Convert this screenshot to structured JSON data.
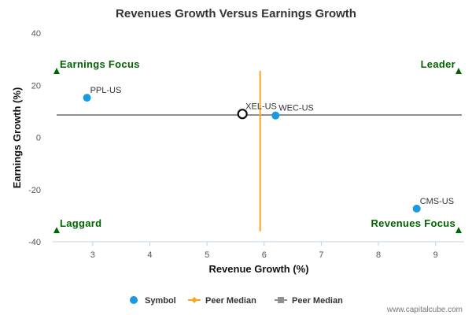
{
  "chart_data": {
    "type": "scatter",
    "title": "Revenues Growth Versus Earnings Growth",
    "xlabel": "Revenue Growth (%)",
    "ylabel": "Earnings Growth (%)",
    "xlim": [
      2.3,
      9.5
    ],
    "ylim": [
      -40,
      40
    ],
    "xticks": [
      3,
      4,
      5,
      6,
      7,
      8,
      9
    ],
    "yticks": [
      40,
      20,
      0,
      -20,
      -40
    ],
    "points": [
      {
        "symbol": "PPL-US",
        "x": 2.9,
        "y": 15.2
      },
      {
        "symbol": "XEL-US",
        "x": 5.62,
        "y": 9.0,
        "highlight": true
      },
      {
        "symbol": "WEC-US",
        "x": 6.2,
        "y": 8.4
      },
      {
        "symbol": "CMS-US",
        "x": 8.67,
        "y": -27.3
      }
    ],
    "peer_median_x": 5.93,
    "peer_median_y": 8.6,
    "quadrants": [
      {
        "label": "Earnings Focus",
        "position": "top-left"
      },
      {
        "label": "Leader",
        "position": "top-right"
      },
      {
        "label": "Laggard",
        "position": "bottom-left"
      },
      {
        "label": "Revenues Focus",
        "position": "bottom-right"
      }
    ],
    "legend": [
      {
        "label": "Symbol",
        "kind": "dot",
        "color": "#1a9ae0"
      },
      {
        "label": "Peer Median",
        "kind": "diamond-line",
        "color": "#f5a623"
      },
      {
        "label": "Peer Median",
        "kind": "square-line",
        "color": "#909090"
      }
    ],
    "colors": {
      "point": "#1a9ae0",
      "highlight_stroke": "#111111",
      "vertical_median": "#f5a623",
      "horizontal_median": "#909090",
      "quadrant": "#006400"
    }
  },
  "footer": {
    "source": "www.capitalcube.com"
  }
}
